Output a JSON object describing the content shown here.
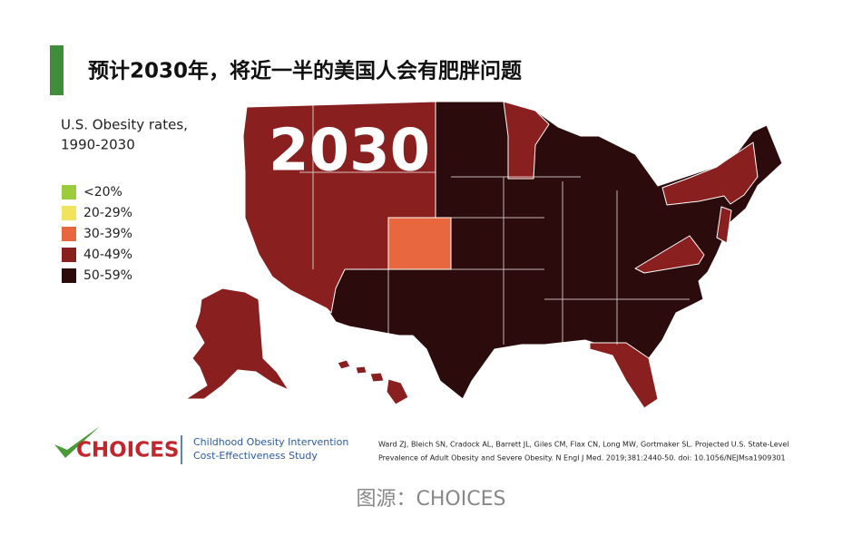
{
  "header": {
    "title": "预计2030年，将近一半的美国人会有肥胖问题"
  },
  "legend": {
    "title_lines": [
      "U.S. Obesity rates,",
      "1990-2030"
    ],
    "items": [
      {
        "label": "<20%",
        "color": "#9ccc3c"
      },
      {
        "label": "20-29%",
        "color": "#f1e45c"
      },
      {
        "label": "30-39%",
        "color": "#e8673f"
      },
      {
        "label": "40-49%",
        "color": "#8a1f1f"
      },
      {
        "label": "50-59%",
        "color": "#2b0b0b"
      }
    ]
  },
  "map": {
    "year": "2030"
  },
  "footer": {
    "logo": "CHOICES",
    "tagline_lines": [
      "Childhood Obesity Intervention",
      "Cost-Effectiveness Study"
    ],
    "citation_lines": [
      "Ward ZJ, Bleich SN, Cradock AL, Barrett JL, Giles CM, Flax CN, Long MW, Gortmaker SL. Projected U.S. State-Level",
      "Prevalence of Adult Obesity and Severe Obesity. N Engl J Med. 2019;381:2440-50. doi: 10.1056/NEJMsa1909301"
    ]
  },
  "caption": "图源：CHOICES"
}
